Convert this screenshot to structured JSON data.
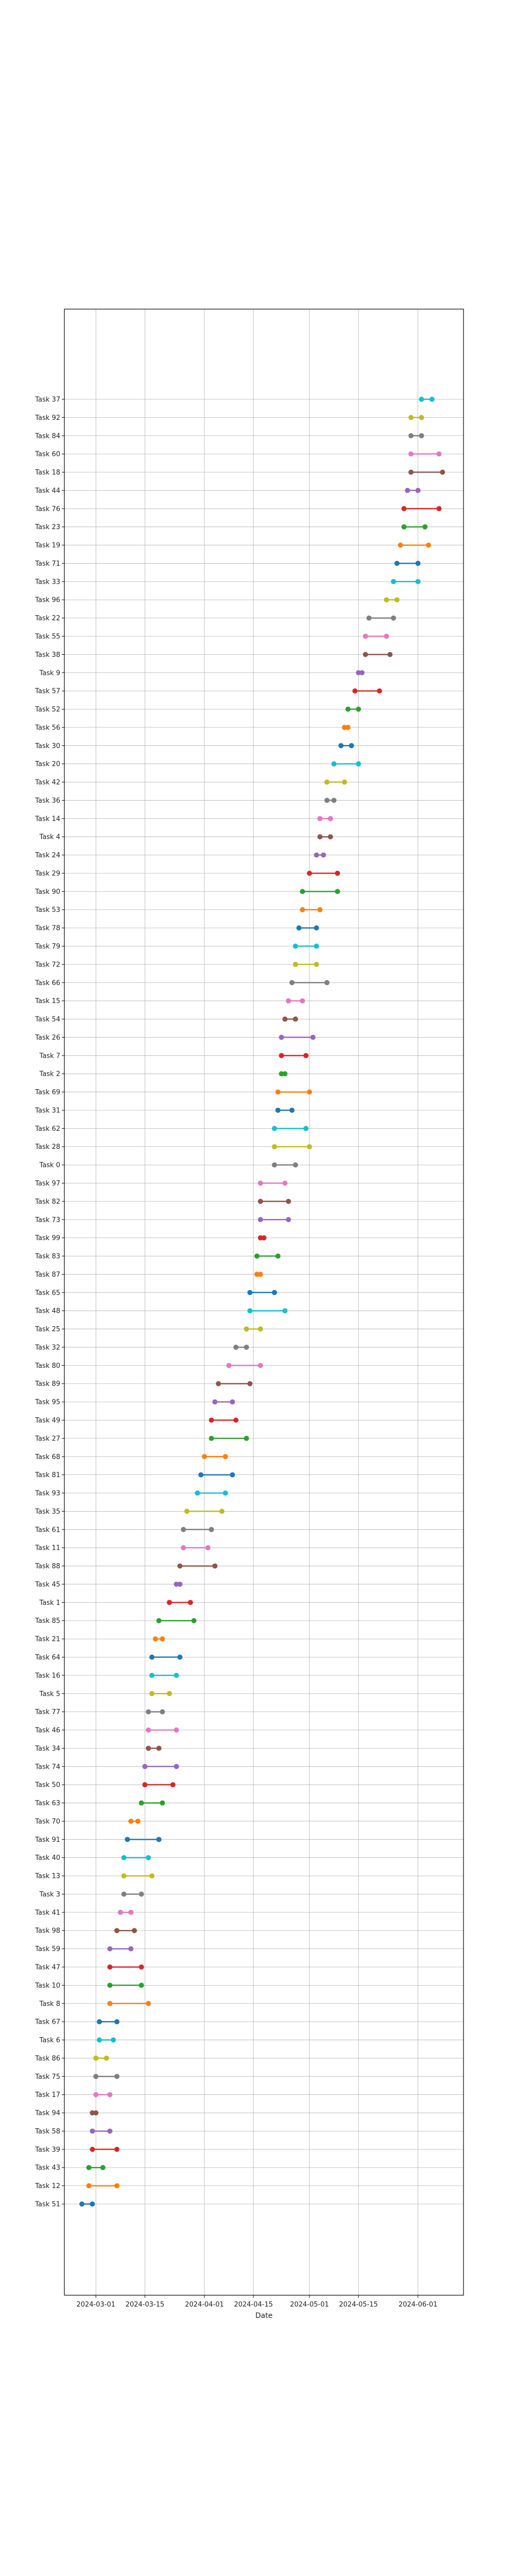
{
  "chart_data": {
    "type": "dumbbell",
    "title": "",
    "xlabel": "Date",
    "ylabel": "",
    "grid": true,
    "x_ticks": [
      "2024-03-01",
      "2024-03-15",
      "2024-04-01",
      "2024-04-15",
      "2024-05-01",
      "2024-05-15",
      "2024-06-01"
    ],
    "xlim": [
      "2024-02-21",
      "2024-06-14"
    ],
    "tasks": [
      {
        "name": "Task 51",
        "start": "2024-02-26",
        "end": "2024-02-29",
        "color": "#1f77b4"
      },
      {
        "name": "Task 12",
        "start": "2024-02-28",
        "end": "2024-03-07",
        "color": "#ff7f0e"
      },
      {
        "name": "Task 43",
        "start": "2024-02-28",
        "end": "2024-03-03",
        "color": "#2ca02c"
      },
      {
        "name": "Task 39",
        "start": "2024-02-29",
        "end": "2024-03-07",
        "color": "#d62728"
      },
      {
        "name": "Task 58",
        "start": "2024-02-29",
        "end": "2024-03-05",
        "color": "#9467bd"
      },
      {
        "name": "Task 94",
        "start": "2024-02-29",
        "end": "2024-03-01",
        "color": "#8c564b"
      },
      {
        "name": "Task 17",
        "start": "2024-03-01",
        "end": "2024-03-05",
        "color": "#e377c2"
      },
      {
        "name": "Task 75",
        "start": "2024-03-01",
        "end": "2024-03-07",
        "color": "#7f7f7f"
      },
      {
        "name": "Task 86",
        "start": "2024-03-01",
        "end": "2024-03-04",
        "color": "#bcbd22"
      },
      {
        "name": "Task 6",
        "start": "2024-03-02",
        "end": "2024-03-06",
        "color": "#17becf"
      },
      {
        "name": "Task 67",
        "start": "2024-03-02",
        "end": "2024-03-07",
        "color": "#1f77b4"
      },
      {
        "name": "Task 8",
        "start": "2024-03-05",
        "end": "2024-03-16",
        "color": "#ff7f0e"
      },
      {
        "name": "Task 10",
        "start": "2024-03-05",
        "end": "2024-03-14",
        "color": "#2ca02c"
      },
      {
        "name": "Task 47",
        "start": "2024-03-05",
        "end": "2024-03-14",
        "color": "#d62728"
      },
      {
        "name": "Task 59",
        "start": "2024-03-05",
        "end": "2024-03-11",
        "color": "#9467bd"
      },
      {
        "name": "Task 98",
        "start": "2024-03-07",
        "end": "2024-03-12",
        "color": "#8c564b"
      },
      {
        "name": "Task 41",
        "start": "2024-03-08",
        "end": "2024-03-11",
        "color": "#e377c2"
      },
      {
        "name": "Task 3",
        "start": "2024-03-09",
        "end": "2024-03-14",
        "color": "#7f7f7f"
      },
      {
        "name": "Task 13",
        "start": "2024-03-09",
        "end": "2024-03-17",
        "color": "#bcbd22"
      },
      {
        "name": "Task 40",
        "start": "2024-03-09",
        "end": "2024-03-16",
        "color": "#17becf"
      },
      {
        "name": "Task 91",
        "start": "2024-03-10",
        "end": "2024-03-19",
        "color": "#1f77b4"
      },
      {
        "name": "Task 70",
        "start": "2024-03-11",
        "end": "2024-03-13",
        "color": "#ff7f0e"
      },
      {
        "name": "Task 63",
        "start": "2024-03-14",
        "end": "2024-03-20",
        "color": "#2ca02c"
      },
      {
        "name": "Task 50",
        "start": "2024-03-15",
        "end": "2024-03-23",
        "color": "#d62728"
      },
      {
        "name": "Task 74",
        "start": "2024-03-15",
        "end": "2024-03-24",
        "color": "#9467bd"
      },
      {
        "name": "Task 34",
        "start": "2024-03-16",
        "end": "2024-03-19",
        "color": "#8c564b"
      },
      {
        "name": "Task 46",
        "start": "2024-03-16",
        "end": "2024-03-24",
        "color": "#e377c2"
      },
      {
        "name": "Task 77",
        "start": "2024-03-16",
        "end": "2024-03-20",
        "color": "#7f7f7f"
      },
      {
        "name": "Task 5",
        "start": "2024-03-17",
        "end": "2024-03-22",
        "color": "#bcbd22"
      },
      {
        "name": "Task 16",
        "start": "2024-03-17",
        "end": "2024-03-24",
        "color": "#17becf"
      },
      {
        "name": "Task 64",
        "start": "2024-03-17",
        "end": "2024-03-25",
        "color": "#1f77b4"
      },
      {
        "name": "Task 21",
        "start": "2024-03-18",
        "end": "2024-03-20",
        "color": "#ff7f0e"
      },
      {
        "name": "Task 85",
        "start": "2024-03-19",
        "end": "2024-03-29",
        "color": "#2ca02c"
      },
      {
        "name": "Task 1",
        "start": "2024-03-22",
        "end": "2024-03-28",
        "color": "#d62728"
      },
      {
        "name": "Task 45",
        "start": "2024-03-24",
        "end": "2024-03-25",
        "color": "#9467bd"
      },
      {
        "name": "Task 88",
        "start": "2024-03-25",
        "end": "2024-04-04",
        "color": "#8c564b"
      },
      {
        "name": "Task 11",
        "start": "2024-03-26",
        "end": "2024-04-02",
        "color": "#e377c2"
      },
      {
        "name": "Task 61",
        "start": "2024-03-26",
        "end": "2024-04-03",
        "color": "#7f7f7f"
      },
      {
        "name": "Task 35",
        "start": "2024-03-27",
        "end": "2024-04-06",
        "color": "#bcbd22"
      },
      {
        "name": "Task 93",
        "start": "2024-03-30",
        "end": "2024-04-07",
        "color": "#17becf"
      },
      {
        "name": "Task 81",
        "start": "2024-03-31",
        "end": "2024-04-09",
        "color": "#1f77b4"
      },
      {
        "name": "Task 68",
        "start": "2024-04-01",
        "end": "2024-04-07",
        "color": "#ff7f0e"
      },
      {
        "name": "Task 27",
        "start": "2024-04-03",
        "end": "2024-04-13",
        "color": "#2ca02c"
      },
      {
        "name": "Task 49",
        "start": "2024-04-03",
        "end": "2024-04-10",
        "color": "#d62728"
      },
      {
        "name": "Task 95",
        "start": "2024-04-04",
        "end": "2024-04-09",
        "color": "#9467bd"
      },
      {
        "name": "Task 89",
        "start": "2024-04-05",
        "end": "2024-04-14",
        "color": "#8c564b"
      },
      {
        "name": "Task 80",
        "start": "2024-04-08",
        "end": "2024-04-17",
        "color": "#e377c2"
      },
      {
        "name": "Task 32",
        "start": "2024-04-10",
        "end": "2024-04-13",
        "color": "#7f7f7f"
      },
      {
        "name": "Task 25",
        "start": "2024-04-13",
        "end": "2024-04-17",
        "color": "#bcbd22"
      },
      {
        "name": "Task 48",
        "start": "2024-04-14",
        "end": "2024-04-24",
        "color": "#17becf"
      },
      {
        "name": "Task 65",
        "start": "2024-04-14",
        "end": "2024-04-21",
        "color": "#1f77b4"
      },
      {
        "name": "Task 87",
        "start": "2024-04-16",
        "end": "2024-04-17",
        "color": "#ff7f0e"
      },
      {
        "name": "Task 83",
        "start": "2024-04-16",
        "end": "2024-04-22",
        "color": "#2ca02c"
      },
      {
        "name": "Task 99",
        "start": "2024-04-17",
        "end": "2024-04-18",
        "color": "#d62728"
      },
      {
        "name": "Task 73",
        "start": "2024-04-17",
        "end": "2024-04-25",
        "color": "#9467bd"
      },
      {
        "name": "Task 82",
        "start": "2024-04-17",
        "end": "2024-04-25",
        "color": "#8c564b"
      },
      {
        "name": "Task 97",
        "start": "2024-04-17",
        "end": "2024-04-24",
        "color": "#e377c2"
      },
      {
        "name": "Task 0",
        "start": "2024-04-21",
        "end": "2024-04-27",
        "color": "#7f7f7f"
      },
      {
        "name": "Task 28",
        "start": "2024-04-21",
        "end": "2024-05-01",
        "color": "#bcbd22"
      },
      {
        "name": "Task 62",
        "start": "2024-04-21",
        "end": "2024-04-30",
        "color": "#17becf"
      },
      {
        "name": "Task 31",
        "start": "2024-04-22",
        "end": "2024-04-26",
        "color": "#1f77b4"
      },
      {
        "name": "Task 69",
        "start": "2024-04-22",
        "end": "2024-05-01",
        "color": "#ff7f0e"
      },
      {
        "name": "Task 2",
        "start": "2024-04-23",
        "end": "2024-04-24",
        "color": "#2ca02c"
      },
      {
        "name": "Task 7",
        "start": "2024-04-23",
        "end": "2024-04-30",
        "color": "#d62728"
      },
      {
        "name": "Task 26",
        "start": "2024-04-23",
        "end": "2024-05-02",
        "color": "#9467bd"
      },
      {
        "name": "Task 54",
        "start": "2024-04-24",
        "end": "2024-04-27",
        "color": "#8c564b"
      },
      {
        "name": "Task 15",
        "start": "2024-04-25",
        "end": "2024-04-29",
        "color": "#e377c2"
      },
      {
        "name": "Task 66",
        "start": "2024-04-26",
        "end": "2024-05-06",
        "color": "#7f7f7f"
      },
      {
        "name": "Task 72",
        "start": "2024-04-27",
        "end": "2024-05-03",
        "color": "#bcbd22"
      },
      {
        "name": "Task 79",
        "start": "2024-04-27",
        "end": "2024-05-03",
        "color": "#17becf"
      },
      {
        "name": "Task 78",
        "start": "2024-04-28",
        "end": "2024-05-03",
        "color": "#1f77b4"
      },
      {
        "name": "Task 53",
        "start": "2024-04-29",
        "end": "2024-05-04",
        "color": "#ff7f0e"
      },
      {
        "name": "Task 90",
        "start": "2024-04-29",
        "end": "2024-05-09",
        "color": "#2ca02c"
      },
      {
        "name": "Task 29",
        "start": "2024-05-01",
        "end": "2024-05-09",
        "color": "#d62728"
      },
      {
        "name": "Task 24",
        "start": "2024-05-03",
        "end": "2024-05-05",
        "color": "#9467bd"
      },
      {
        "name": "Task 4",
        "start": "2024-05-04",
        "end": "2024-05-07",
        "color": "#8c564b"
      },
      {
        "name": "Task 14",
        "start": "2024-05-04",
        "end": "2024-05-07",
        "color": "#e377c2"
      },
      {
        "name": "Task 36",
        "start": "2024-05-06",
        "end": "2024-05-08",
        "color": "#7f7f7f"
      },
      {
        "name": "Task 42",
        "start": "2024-05-06",
        "end": "2024-05-11",
        "color": "#bcbd22"
      },
      {
        "name": "Task 20",
        "start": "2024-05-08",
        "end": "2024-05-15",
        "color": "#17becf"
      },
      {
        "name": "Task 30",
        "start": "2024-05-10",
        "end": "2024-05-13",
        "color": "#1f77b4"
      },
      {
        "name": "Task 56",
        "start": "2024-05-11",
        "end": "2024-05-12",
        "color": "#ff7f0e"
      },
      {
        "name": "Task 52",
        "start": "2024-05-12",
        "end": "2024-05-15",
        "color": "#2ca02c"
      },
      {
        "name": "Task 57",
        "start": "2024-05-14",
        "end": "2024-05-21",
        "color": "#d62728"
      },
      {
        "name": "Task 9",
        "start": "2024-05-15",
        "end": "2024-05-16",
        "color": "#9467bd"
      },
      {
        "name": "Task 38",
        "start": "2024-05-17",
        "end": "2024-05-24",
        "color": "#8c564b"
      },
      {
        "name": "Task 55",
        "start": "2024-05-17",
        "end": "2024-05-23",
        "color": "#e377c2"
      },
      {
        "name": "Task 22",
        "start": "2024-05-18",
        "end": "2024-05-25",
        "color": "#7f7f7f"
      },
      {
        "name": "Task 96",
        "start": "2024-05-23",
        "end": "2024-05-26",
        "color": "#bcbd22"
      },
      {
        "name": "Task 33",
        "start": "2024-05-25",
        "end": "2024-06-01",
        "color": "#17becf"
      },
      {
        "name": "Task 71",
        "start": "2024-05-26",
        "end": "2024-06-01",
        "color": "#1f77b4"
      },
      {
        "name": "Task 19",
        "start": "2024-05-27",
        "end": "2024-06-04",
        "color": "#ff7f0e"
      },
      {
        "name": "Task 23",
        "start": "2024-05-28",
        "end": "2024-06-03",
        "color": "#2ca02c"
      },
      {
        "name": "Task 76",
        "start": "2024-05-28",
        "end": "2024-06-07",
        "color": "#d62728"
      },
      {
        "name": "Task 44",
        "start": "2024-05-29",
        "end": "2024-06-01",
        "color": "#9467bd"
      },
      {
        "name": "Task 18",
        "start": "2024-05-30",
        "end": "2024-06-08",
        "color": "#8c564b"
      },
      {
        "name": "Task 60",
        "start": "2024-05-30",
        "end": "2024-06-07",
        "color": "#e377c2"
      },
      {
        "name": "Task 84",
        "start": "2024-05-30",
        "end": "2024-06-02",
        "color": "#7f7f7f"
      },
      {
        "name": "Task 92",
        "start": "2024-05-30",
        "end": "2024-06-02",
        "color": "#bcbd22"
      },
      {
        "name": "Task 37",
        "start": "2024-06-02",
        "end": "2024-06-05",
        "color": "#17becf"
      }
    ]
  }
}
